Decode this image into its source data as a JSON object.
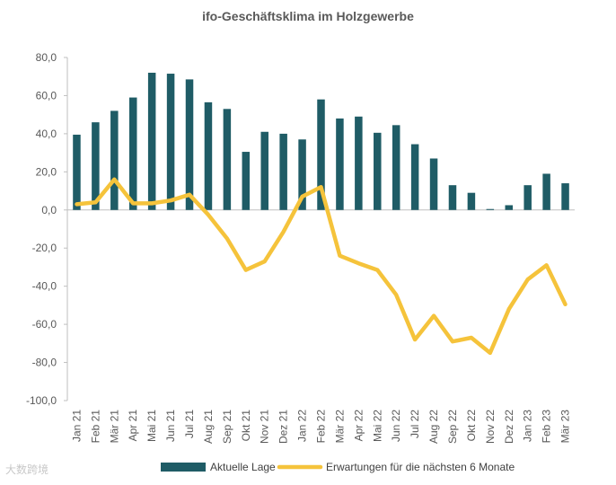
{
  "chart_data": {
    "type": "bar+line",
    "title": "ifo-Geschäftsklima im Holzgewerbe",
    "categories": [
      "Jan 21",
      "Feb 21",
      "Mär 21",
      "Apr 21",
      "Mai 21",
      "Jun 21",
      "Jul 21",
      "Aug 21",
      "Sep 21",
      "Okt 21",
      "Nov 21",
      "Dez 21",
      "Jan 22",
      "Feb 22",
      "Mär 22",
      "Apr 22",
      "Mai 22",
      "Jun 22",
      "Jul 22",
      "Aug 22",
      "Sep 22",
      "Okt 22",
      "Nov 22",
      "Dez 22",
      "Jan 23",
      "Feb 23",
      "Mär 23"
    ],
    "ylim": [
      -100,
      80
    ],
    "yticks": [
      80,
      60,
      40,
      20,
      0,
      -20,
      -40,
      -60,
      -80,
      -100
    ],
    "ytick_labels": [
      "80,0",
      "60,0",
      "40,0",
      "20,0",
      "0,0",
      "-20,0",
      "-40,0",
      "-60,0",
      "-80,0",
      "-100,0"
    ],
    "series": [
      {
        "name": "Aktuelle Lage",
        "kind": "bar",
        "color": "#1f5c66",
        "values": [
          39.5,
          46,
          52,
          59,
          72,
          71.5,
          68.5,
          56.5,
          53,
          30.5,
          41,
          40,
          37,
          58,
          48,
          49,
          40.5,
          44.5,
          34.5,
          27,
          13,
          9,
          0.5,
          2.5,
          13,
          19,
          14
        ]
      },
      {
        "name": "Erwartungen für die nächsten 6 Monate",
        "kind": "line",
        "color": "#f5c33b",
        "values": [
          3,
          4,
          16,
          3.5,
          3.5,
          5,
          8,
          -2.5,
          -15,
          -31.5,
          -27,
          -11.5,
          7,
          12,
          -24,
          -28,
          -31.5,
          -44.5,
          -68,
          -55.5,
          -69,
          -67,
          -75,
          -52,
          -36.5,
          -29,
          -49.5
        ]
      }
    ]
  },
  "watermark": "大数跨境"
}
